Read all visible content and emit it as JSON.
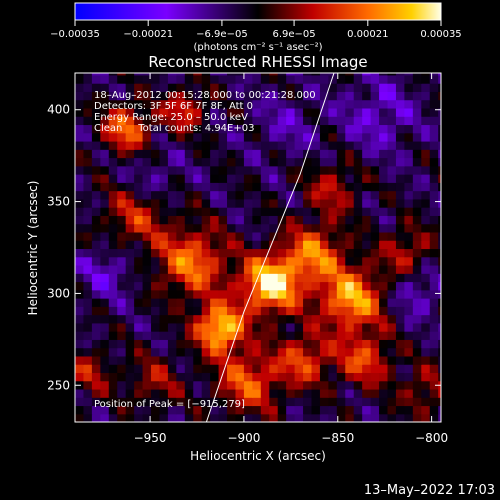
{
  "chart_data": {
    "type": "heatmap",
    "title": "Reconstructed RHESSI Image",
    "xlabel": "Heliocentric X (arcsec)",
    "ylabel": "Heliocentric Y (arcsec)",
    "xlim": [
      -990,
      -795
    ],
    "ylim": [
      230,
      420
    ],
    "x_ticks": [
      -950,
      -900,
      -850,
      -800
    ],
    "y_ticks": [
      250,
      300,
      350,
      400
    ],
    "colorbar": {
      "min": -0.00035,
      "max": 0.00035,
      "tick_values": [
        -0.00035,
        -0.00021,
        -6.9e-05,
        6.9e-05,
        0.00021,
        0.00035
      ],
      "tick_labels": [
        "−0.00035",
        "−0.00021",
        "−6.9e−05",
        "6.9e−05",
        "0.00021",
        "0.00035"
      ],
      "unit_label": "(photons cm⁻² s⁻¹ asec⁻²)"
    },
    "annotations": [
      "18–Aug–2012 00:15:28.000 to 00:21:28.000",
      "Detectors: 3F 5F 6F 7F 8F, Att 0",
      "Energy Range: 25.0 – 50.0 keV",
      "Clean     Total counts: 4.94E+03",
      "Position of Peak = [−915,279]"
    ],
    "peak": {
      "x": -915,
      "y": 279
    },
    "limb_line": [
      [
        -920,
        230
      ],
      [
        -900,
        290
      ],
      [
        -870,
        365
      ],
      [
        -852,
        420
      ]
    ],
    "sources": [
      {
        "x": -888,
        "y": 303,
        "amplitude": 0.00038,
        "sigma": 11
      },
      {
        "x": -915,
        "y": 279,
        "amplitude": 0.00036,
        "sigma": 9
      },
      {
        "x": -845,
        "y": 295,
        "amplitude": 0.0003,
        "sigma": 12
      },
      {
        "x": -930,
        "y": 315,
        "amplitude": 0.00025,
        "sigma": 13
      },
      {
        "x": -865,
        "y": 320,
        "amplitude": 0.00024,
        "sigma": 11
      },
      {
        "x": -965,
        "y": 388,
        "amplitude": 0.00024,
        "sigma": 9
      },
      {
        "x": -934,
        "y": 398,
        "amplitude": 0.00018,
        "sigma": 8
      },
      {
        "x": -900,
        "y": 250,
        "amplitude": 0.00022,
        "sigma": 12
      },
      {
        "x": -870,
        "y": 262,
        "amplitude": 0.0002,
        "sigma": 10
      },
      {
        "x": -838,
        "y": 262,
        "amplitude": 0.0002,
        "sigma": 10
      },
      {
        "x": -960,
        "y": 340,
        "amplitude": 0.00016,
        "sigma": 12
      },
      {
        "x": -815,
        "y": 320,
        "amplitude": 0.00015,
        "sigma": 10
      },
      {
        "x": -855,
        "y": 355,
        "amplitude": 0.00014,
        "sigma": 10
      },
      {
        "x": -985,
        "y": 255,
        "amplitude": 0.00013,
        "sigma": 9
      },
      {
        "x": -950,
        "y": 250,
        "amplitude": 0.00012,
        "sigma": 10
      },
      {
        "x": -805,
        "y": 245,
        "amplitude": 0.00012,
        "sigma": 10
      },
      {
        "x": -975,
        "y": 310,
        "amplitude": -0.0001,
        "sigma": 10
      },
      {
        "x": -830,
        "y": 395,
        "amplitude": -0.0001,
        "sigma": 14
      },
      {
        "x": -810,
        "y": 300,
        "amplitude": -0.00011,
        "sigma": 10
      },
      {
        "x": -880,
        "y": 390,
        "amplitude": -7e-05,
        "sigma": 12
      },
      {
        "x": -950,
        "y": 360,
        "amplitude": -8e-05,
        "sigma": 10
      }
    ],
    "timestamp": "13–May–2022 17:03"
  }
}
